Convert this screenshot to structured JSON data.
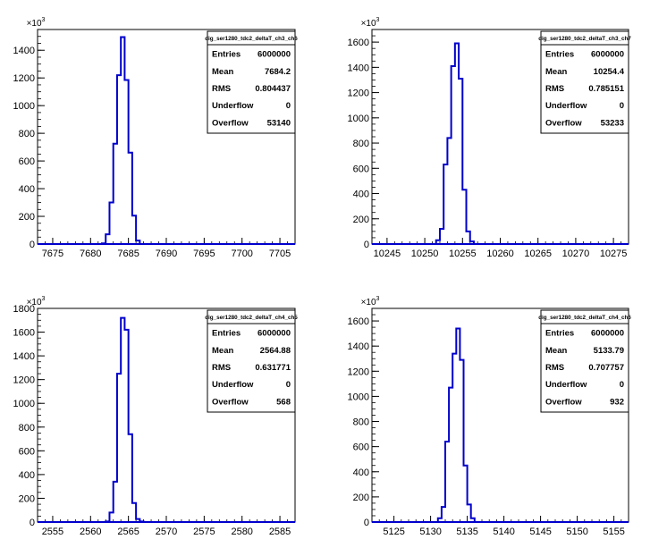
{
  "chart_data": [
    {
      "type": "histogram",
      "title": "",
      "ylabel": "",
      "y_multiplier": "×10^3",
      "multiplier_base": "10",
      "multiplier_exp": "3",
      "xlim": [
        7673,
        7707
      ],
      "ylim": [
        0,
        1550
      ],
      "x_ticks": [
        7675,
        7680,
        7685,
        7690,
        7695,
        7700,
        7705
      ],
      "y_ticks": [
        0,
        200,
        400,
        600,
        800,
        1000,
        1200,
        1400
      ],
      "y_tick_labels": [
        "0",
        "200",
        "400",
        "600",
        "800",
        "1000",
        "1200",
        "1400"
      ],
      "bin_width": 0.5,
      "bins_x0": [
        7681.5,
        7682.0,
        7682.5,
        7683.0,
        7683.5,
        7684.0,
        7684.5,
        7685.0,
        7685.5,
        7686.0
      ],
      "bins_y": [
        5,
        70,
        300,
        725,
        1220,
        1495,
        1185,
        660,
        205,
        25
      ],
      "stats": {
        "name": "dig_ser1280_tdc2_deltaT_ch3_ch6",
        "rows": [
          {
            "label": "Entries",
            "value": "6000000"
          },
          {
            "label": "Mean",
            "value": "7684.2"
          },
          {
            "label": "RMS",
            "value": "0.804437"
          },
          {
            "label": "Underflow",
            "value": "0"
          },
          {
            "label": "Overflow",
            "value": "53140"
          }
        ]
      }
    },
    {
      "type": "histogram",
      "title": "",
      "ylabel": "",
      "y_multiplier": "×10^3",
      "multiplier_base": "10",
      "multiplier_exp": "3",
      "xlim": [
        10243,
        10277
      ],
      "ylim": [
        0,
        1700
      ],
      "x_ticks": [
        10245,
        10250,
        10255,
        10260,
        10265,
        10270,
        10275
      ],
      "y_ticks": [
        0,
        200,
        400,
        600,
        800,
        1000,
        1200,
        1400,
        1600
      ],
      "y_tick_labels": [
        "0",
        "200",
        "400",
        "600",
        "800",
        "1000",
        "1200",
        "1400",
        "1600"
      ],
      "bin_width": 0.5,
      "bins_x0": [
        10251.5,
        10252.0,
        10252.5,
        10253.0,
        10253.5,
        10254.0,
        10254.5,
        10255.0,
        10255.5,
        10256.0
      ],
      "bins_y": [
        30,
        120,
        630,
        840,
        1410,
        1590,
        1310,
        430,
        100,
        20
      ],
      "stats": {
        "name": "dig_ser1280_tdc2_deltaT_ch3_ch7",
        "rows": [
          {
            "label": "Entries",
            "value": "6000000"
          },
          {
            "label": "Mean",
            "value": "10254.4"
          },
          {
            "label": "RMS",
            "value": "0.785151"
          },
          {
            "label": "Underflow",
            "value": "0"
          },
          {
            "label": "Overflow",
            "value": "53233"
          }
        ]
      }
    },
    {
      "type": "histogram",
      "title": "",
      "ylabel": "",
      "y_multiplier": "×10^3",
      "multiplier_base": "10",
      "multiplier_exp": "3",
      "xlim": [
        2553,
        2587
      ],
      "ylim": [
        0,
        1800
      ],
      "x_ticks": [
        2555,
        2560,
        2565,
        2570,
        2575,
        2580,
        2585
      ],
      "y_ticks": [
        0,
        200,
        400,
        600,
        800,
        1000,
        1200,
        1400,
        1600,
        1800
      ],
      "y_tick_labels": [
        "0",
        "200",
        "400",
        "600",
        "800",
        "1000",
        "1200",
        "1400",
        "1600",
        "1800"
      ],
      "bin_width": 0.5,
      "bins_x0": [
        2562.0,
        2562.5,
        2563.0,
        2563.5,
        2564.0,
        2564.5,
        2565.0,
        2565.5,
        2566.0,
        2566.5
      ],
      "bins_y": [
        5,
        80,
        340,
        1250,
        1720,
        1620,
        740,
        160,
        25,
        5
      ],
      "stats": {
        "name": "dig_ser1280_tdc2_deltaT_ch4_ch5",
        "rows": [
          {
            "label": "Entries",
            "value": "6000000"
          },
          {
            "label": "Mean",
            "value": "2564.88"
          },
          {
            "label": "RMS",
            "value": "0.631771"
          },
          {
            "label": "Underflow",
            "value": "0"
          },
          {
            "label": "Overflow",
            "value": "568"
          }
        ]
      }
    },
    {
      "type": "histogram",
      "title": "",
      "ylabel": "",
      "y_multiplier": "×10^3",
      "multiplier_base": "10",
      "multiplier_exp": "3",
      "xlim": [
        5122,
        5157
      ],
      "ylim": [
        0,
        1700
      ],
      "x_ticks": [
        5125,
        5130,
        5135,
        5140,
        5145,
        5150,
        5155
      ],
      "y_ticks": [
        0,
        200,
        400,
        600,
        800,
        1000,
        1200,
        1400,
        1600
      ],
      "y_tick_labels": [
        "0",
        "200",
        "400",
        "600",
        "800",
        "1000",
        "1200",
        "1400",
        "1600"
      ],
      "bin_width": 0.5,
      "bins_x0": [
        5131.0,
        5131.5,
        5132.0,
        5132.5,
        5133.0,
        5133.5,
        5134.0,
        5134.5,
        5135.0,
        5135.5
      ],
      "bins_y": [
        30,
        120,
        640,
        1070,
        1340,
        1540,
        1290,
        450,
        140,
        30
      ],
      "stats": {
        "name": "dig_ser1280_tdc2_deltaT_ch4_ch6",
        "rows": [
          {
            "label": "Entries",
            "value": "6000000"
          },
          {
            "label": "Mean",
            "value": "5133.79"
          },
          {
            "label": "RMS",
            "value": "0.707757"
          },
          {
            "label": "Underflow",
            "value": "0"
          },
          {
            "label": "Overflow",
            "value": "932"
          }
        ]
      }
    }
  ]
}
